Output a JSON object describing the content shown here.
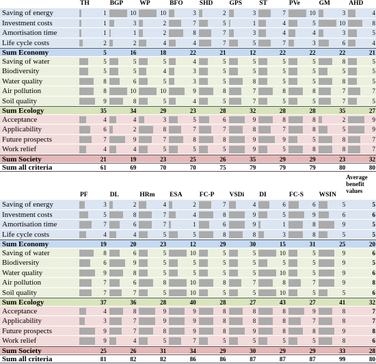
{
  "tables": [
    {
      "headers": [
        "TH",
        "BGP",
        "WP",
        "BFO",
        "SHD",
        "GPS",
        "ST",
        "PVe",
        "GM",
        "AHD"
      ],
      "groups": [
        {
          "rows": [
            {
              "label": "Saving of energy",
              "values": [
                1,
                10,
                10,
                3,
                2,
                3,
                7,
                10,
                3,
                4
              ]
            },
            {
              "label": "Investment costs",
              "values": [
                1,
                3,
                2,
                7,
                5,
                1,
                4,
                5,
                10,
                8
              ]
            },
            {
              "label": "Amortisation time",
              "values": [
                1,
                1,
                2,
                8,
                7,
                3,
                4,
                4,
                3,
                5
              ]
            },
            {
              "label": "Life cycle costs",
              "values": [
                2,
                2,
                4,
                4,
                7,
                5,
                7,
                3,
                6,
                4
              ]
            }
          ],
          "sum": {
            "label": "Sum Economy",
            "values": [
              5,
              16,
              18,
              22,
              21,
              12,
              22,
              22,
              22,
              21
            ]
          }
        },
        {
          "rows": [
            {
              "label": "Saving of water",
              "values": [
                5,
                5,
                5,
                4,
                5,
                5,
                5,
                5,
                8,
                5
              ]
            },
            {
              "label": "Biodiversity",
              "values": [
                5,
                5,
                4,
                3,
                5,
                5,
                5,
                5,
                5,
                5
              ]
            },
            {
              "label": "Water quality",
              "values": [
                8,
                6,
                5,
                3,
                5,
                8,
                5,
                5,
                8,
                5
              ]
            },
            {
              "label": "Air pollution",
              "values": [
                8,
                10,
                10,
                9,
                8,
                7,
                8,
                8,
                7,
                7
              ]
            },
            {
              "label": "Soil quality",
              "values": [
                9,
                8,
                5,
                4,
                5,
                7,
                5,
                5,
                7,
                5
              ]
            }
          ],
          "sum": {
            "label": "Sum Ecology",
            "values": [
              35,
              34,
              29,
              23,
              28,
              32,
              28,
              28,
              35,
              27
            ]
          }
        },
        {
          "rows": [
            {
              "label": "Acceptance",
              "values": [
                4,
                4,
                3,
                5,
                6,
                9,
                8,
                8,
                2,
                9
              ]
            },
            {
              "label": "Applicability",
              "values": [
                6,
                2,
                8,
                7,
                7,
                8,
                7,
                8,
                5,
                9
              ]
            },
            {
              "label": "Future prospects",
              "values": [
                7,
                9,
                7,
                8,
                8,
                9,
                9,
                5,
                8,
                7
              ]
            },
            {
              "label": "Work relief",
              "values": [
                4,
                4,
                5,
                5,
                5,
                9,
                5,
                8,
                8,
                7
              ]
            }
          ],
          "sum": {
            "label": "Sum Society",
            "values": [
              21,
              19,
              23,
              25,
              26,
              35,
              29,
              29,
              23,
              32
            ]
          }
        }
      ],
      "total": {
        "label": "Sum all criteria",
        "values": [
          61,
          69,
          70,
          70,
          75,
          79,
          79,
          79,
          80,
          80
        ]
      }
    },
    {
      "headers": [
        "PF",
        "DL",
        "HRm",
        "ESA",
        "FC-P",
        "VSDi",
        "DI",
        "FC-S",
        "WSIN"
      ],
      "average_header": "Average benefit values",
      "groups": [
        {
          "rows": [
            {
              "label": "Saving of energy",
              "values": [
                3,
                2,
                4,
                2,
                7,
                4,
                6,
                6,
                5
              ],
              "average": 5
            },
            {
              "label": "Investment costs",
              "values": [
                5,
                8,
                7,
                4,
                8,
                9,
                5,
                9,
                6
              ],
              "average": 6
            },
            {
              "label": "Amortisation time",
              "values": [
                7,
                6,
                7,
                1,
                6,
                9,
                1,
                8,
                9
              ],
              "average": 5
            },
            {
              "label": "Life cycle costs",
              "values": [
                4,
                4,
                5,
                5,
                8,
                8,
                3,
                8,
                5
              ],
              "average": 5
            }
          ],
          "sum": {
            "label": "Sum Economy",
            "values": [
              19,
              20,
              23,
              12,
              29,
              30,
              15,
              31,
              25
            ],
            "average": 20
          }
        },
        {
          "rows": [
            {
              "label": "Saving of water",
              "values": [
                8,
                6,
                5,
                10,
                5,
                5,
                10,
                5,
                9
              ],
              "average": 6
            },
            {
              "label": "Biodiversity",
              "values": [
                6,
                9,
                5,
                5,
                5,
                5,
                5,
                5,
                9
              ],
              "average": 5
            },
            {
              "label": "Water quality",
              "values": [
                9,
                8,
                5,
                5,
                5,
                5,
                10,
                5,
                9
              ],
              "average": 6
            },
            {
              "label": "Air pollution",
              "values": [
                7,
                6,
                8,
                10,
                8,
                7,
                8,
                7,
                9
              ],
              "average": 8
            },
            {
              "label": "Soil quality",
              "values": [
                7,
                7,
                5,
                10,
                5,
                5,
                10,
                5,
                5
              ],
              "average": 6
            }
          ],
          "sum": {
            "label": "Sum Ecology",
            "values": [
              37,
              36,
              28,
              40,
              28,
              27,
              43,
              27,
              41
            ],
            "average": 32
          }
        },
        {
          "rows": [
            {
              "label": "Acceptance",
              "values": [
                4,
                8,
                9,
                9,
                8,
                8,
                8,
                9,
                8
              ],
              "average": 7
            },
            {
              "label": "Applicability",
              "values": [
                3,
                7,
                9,
                9,
                8,
                8,
                8,
                7,
                8
              ],
              "average": 7
            },
            {
              "label": "Future prospects",
              "values": [
                9,
                7,
                8,
                9,
                8,
                9,
                8,
                8,
                9
              ],
              "average": 8
            },
            {
              "label": "Work relief",
              "values": [
                9,
                4,
                5,
                7,
                5,
                5,
                5,
                5,
                8
              ],
              "average": 6
            }
          ],
          "sum": {
            "label": "Sum Society",
            "values": [
              25,
              26,
              31,
              34,
              29,
              30,
              29,
              29,
              33
            ],
            "average": 28
          }
        }
      ],
      "total": {
        "label": "Sum all criteria",
        "values": [
          81,
          82,
          82,
          86,
          86,
          87,
          87,
          87,
          99
        ],
        "average": 80
      }
    }
  ]
}
